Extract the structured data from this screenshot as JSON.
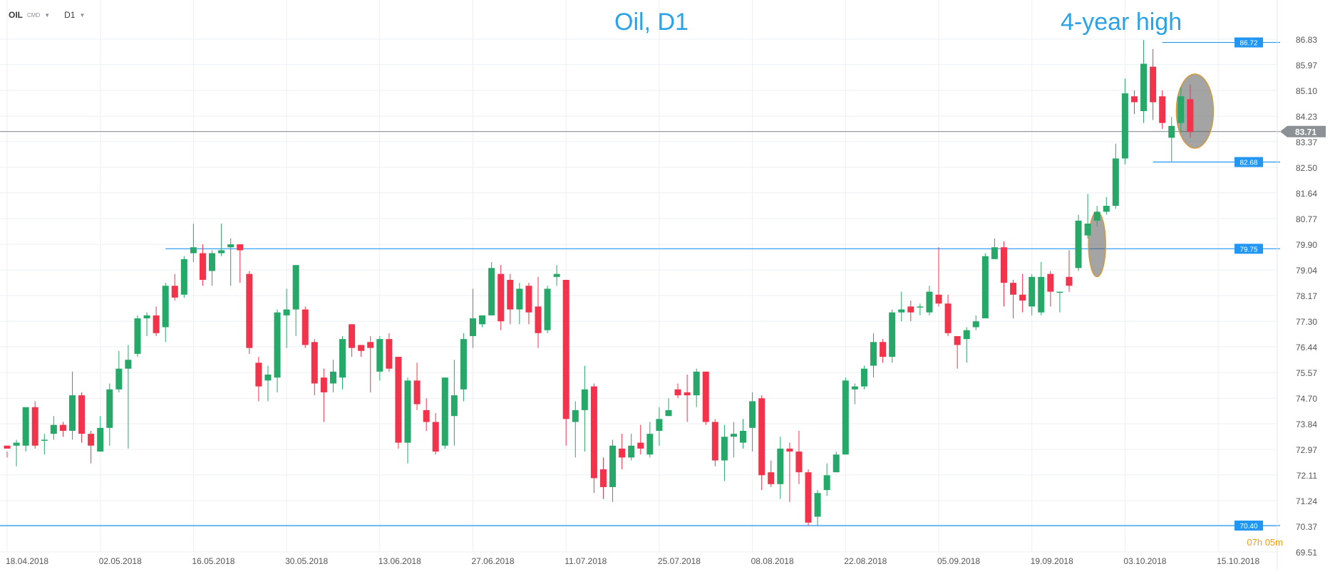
{
  "toolbar": {
    "symbol": "OIL",
    "market": "CMD",
    "timeframe": "D1"
  },
  "titles": {
    "main": "Oil, D1",
    "annotation": "4-year high"
  },
  "countdown": {
    "hours": "07",
    "h_unit": "h",
    "minutes": "05",
    "m_unit": "m"
  },
  "colors": {
    "up": "#26a869",
    "down": "#f2334b",
    "level_line": "#2196f3",
    "price_line": "#8c9196",
    "title": "#29a3e6",
    "countdown": "#f39c12"
  },
  "chart_data": {
    "type": "candlestick",
    "title": "Oil, D1",
    "annotation": "4-year high",
    "y_ticks": [
      "86.83",
      "85.97",
      "85.10",
      "84.23",
      "83.37",
      "82.50",
      "81.64",
      "80.77",
      "79.90",
      "79.04",
      "78.17",
      "77.30",
      "76.44",
      "75.57",
      "74.70",
      "73.84",
      "72.97",
      "72.11",
      "71.24",
      "70.37",
      "69.51"
    ],
    "ylim": [
      69.51,
      86.83
    ],
    "x_ticks": [
      "18.04.2018",
      "02.05.2018",
      "16.05.2018",
      "30.05.2018",
      "13.06.2018",
      "27.06.2018",
      "11.07.2018",
      "25.07.2018",
      "08.08.2018",
      "22.08.2018",
      "05.09.2018",
      "19.09.2018",
      "03.10.2018",
      "15.10.2018"
    ],
    "current_price": "83.71",
    "levels": [
      {
        "label": "86.72",
        "value": 86.72
      },
      {
        "label": "82.68",
        "value": 82.68
      },
      {
        "label": "79.75",
        "value": 79.75
      },
      {
        "label": "70.40",
        "value": 70.4
      }
    ],
    "candles": [
      [
        73.1,
        73.0,
        72.9,
        72.7
      ],
      [
        73.1,
        73.2,
        73.3,
        72.4
      ],
      [
        73.1,
        74.4,
        74.3,
        72.9
      ],
      [
        74.4,
        73.1,
        74.6,
        73.0
      ],
      [
        73.3,
        73.3,
        73.5,
        72.8
      ],
      [
        73.5,
        73.8,
        74.1,
        73.3
      ],
      [
        73.8,
        73.6,
        73.9,
        73.4
      ],
      [
        73.6,
        74.8,
        75.6,
        73.3
      ],
      [
        74.8,
        73.5,
        74.9,
        73.2
      ],
      [
        73.5,
        73.1,
        73.6,
        72.5
      ],
      [
        72.9,
        73.7,
        74.1,
        72.9
      ],
      [
        73.7,
        75.0,
        75.2,
        73.1
      ],
      [
        75.0,
        75.7,
        76.3,
        74.9
      ],
      [
        75.7,
        76.0,
        76.5,
        73.0
      ],
      [
        76.2,
        77.4,
        77.5,
        76.1
      ],
      [
        77.4,
        77.5,
        77.6,
        76.8
      ],
      [
        77.5,
        76.9,
        77.8,
        76.8
      ],
      [
        77.1,
        78.5,
        78.6,
        76.6
      ],
      [
        78.5,
        78.1,
        78.9,
        78.0
      ],
      [
        78.2,
        79.4,
        79.5,
        78.1
      ],
      [
        79.6,
        79.8,
        80.6,
        79.3
      ],
      [
        79.6,
        78.7,
        79.9,
        78.5
      ],
      [
        79.0,
        79.6,
        79.7,
        78.5
      ],
      [
        79.6,
        79.7,
        80.6,
        79.5
      ],
      [
        79.8,
        79.9,
        80.1,
        78.5
      ],
      [
        79.9,
        79.7,
        79.9,
        78.6
      ],
      [
        78.9,
        76.4,
        79.0,
        76.2
      ],
      [
        75.9,
        75.1,
        76.1,
        74.6
      ],
      [
        75.3,
        75.5,
        75.8,
        74.6
      ],
      [
        75.4,
        77.6,
        77.7,
        74.9
      ],
      [
        77.5,
        77.7,
        78.4,
        76.4
      ],
      [
        77.7,
        79.2,
        79.2,
        76.8
      ],
      [
        77.7,
        76.5,
        77.8,
        76.4
      ],
      [
        76.6,
        75.2,
        76.7,
        74.8
      ],
      [
        75.4,
        74.9,
        75.7,
        73.9
      ],
      [
        75.2,
        75.6,
        76.0,
        74.9
      ],
      [
        75.4,
        76.7,
        76.8,
        75.0
      ],
      [
        77.2,
        76.4,
        77.2,
        76.1
      ],
      [
        76.5,
        76.3,
        76.5,
        76.1
      ],
      [
        76.6,
        76.4,
        76.8,
        74.9
      ],
      [
        75.6,
        76.7,
        76.8,
        75.3
      ],
      [
        76.7,
        75.7,
        76.9,
        75.6
      ],
      [
        76.1,
        73.2,
        76.1,
        73.0
      ],
      [
        73.2,
        75.3,
        75.4,
        72.5
      ],
      [
        75.3,
        74.5,
        75.9,
        74.3
      ],
      [
        74.3,
        73.9,
        74.7,
        73.6
      ],
      [
        73.9,
        72.9,
        74.2,
        72.8
      ],
      [
        73.1,
        75.4,
        75.4,
        73.0
      ],
      [
        74.1,
        74.8,
        76.0,
        73.1
      ],
      [
        75.0,
        76.7,
        76.9,
        74.6
      ],
      [
        76.8,
        77.4,
        78.4,
        76.4
      ],
      [
        77.2,
        77.5,
        77.5,
        77.1
      ],
      [
        77.5,
        79.1,
        79.3,
        77.5
      ],
      [
        78.9,
        77.3,
        79.2,
        77.0
      ],
      [
        78.7,
        77.7,
        78.9,
        77.2
      ],
      [
        77.7,
        78.4,
        78.6,
        77.2
      ],
      [
        78.5,
        77.6,
        78.6,
        77.2
      ],
      [
        77.8,
        76.9,
        78.8,
        76.4
      ],
      [
        77.0,
        78.4,
        78.5,
        76.9
      ],
      [
        78.8,
        78.9,
        79.2,
        78.5
      ],
      [
        78.7,
        74.0,
        78.7,
        73.1
      ],
      [
        73.9,
        74.3,
        74.6,
        72.7
      ],
      [
        74.3,
        75.0,
        75.8,
        72.9
      ],
      [
        75.1,
        72.0,
        75.2,
        71.5
      ],
      [
        72.3,
        71.7,
        72.7,
        71.3
      ],
      [
        71.7,
        73.1,
        73.3,
        71.2
      ],
      [
        73.0,
        72.7,
        73.5,
        72.3
      ],
      [
        72.7,
        73.1,
        73.5,
        72.6
      ],
      [
        73.2,
        73.0,
        73.8,
        72.8
      ],
      [
        72.8,
        73.5,
        73.9,
        72.7
      ],
      [
        73.6,
        74.0,
        74.4,
        73.1
      ],
      [
        74.1,
        74.3,
        74.7,
        74.1
      ],
      [
        75.0,
        74.8,
        75.2,
        74.7
      ],
      [
        74.9,
        74.8,
        75.5,
        73.9
      ],
      [
        74.8,
        75.6,
        75.7,
        74.4
      ],
      [
        75.6,
        73.9,
        75.6,
        73.8
      ],
      [
        73.9,
        72.6,
        74.0,
        72.4
      ],
      [
        72.6,
        73.4,
        73.8,
        71.9
      ],
      [
        73.4,
        73.5,
        73.9,
        72.7
      ],
      [
        73.2,
        73.6,
        74.0,
        73.0
      ],
      [
        73.7,
        74.6,
        74.9,
        72.9
      ],
      [
        74.7,
        72.1,
        74.8,
        71.6
      ],
      [
        72.2,
        71.8,
        72.6,
        71.7
      ],
      [
        71.8,
        73.0,
        73.4,
        71.3
      ],
      [
        73.0,
        72.9,
        73.2,
        71.2
      ],
      [
        72.9,
        72.2,
        73.6,
        71.8
      ],
      [
        72.2,
        70.5,
        72.3,
        70.4
      ],
      [
        70.7,
        71.5,
        71.6,
        70.4
      ],
      [
        71.6,
        72.1,
        72.5,
        71.4
      ],
      [
        72.2,
        72.8,
        72.9,
        72.2
      ],
      [
        72.8,
        75.3,
        75.4,
        72.9
      ],
      [
        75.0,
        75.1,
        75.2,
        74.5
      ],
      [
        75.1,
        75.7,
        75.8,
        75.0
      ],
      [
        75.8,
        76.6,
        76.9,
        75.4
      ],
      [
        76.6,
        76.1,
        76.7,
        75.9
      ],
      [
        76.1,
        77.6,
        77.7,
        75.9
      ],
      [
        77.6,
        77.7,
        78.3,
        77.3
      ],
      [
        77.8,
        77.6,
        78.0,
        77.3
      ],
      [
        77.8,
        77.8,
        77.9,
        77.5
      ],
      [
        77.6,
        78.3,
        78.5,
        77.5
      ],
      [
        78.2,
        77.9,
        79.8,
        77.8
      ],
      [
        77.9,
        76.9,
        78.2,
        76.8
      ],
      [
        76.8,
        76.5,
        76.8,
        75.7
      ],
      [
        76.7,
        77.0,
        77.1,
        75.9
      ],
      [
        77.1,
        77.3,
        77.5,
        77.0
      ],
      [
        77.4,
        79.5,
        79.6,
        77.4
      ],
      [
        79.4,
        79.8,
        80.1,
        79.5
      ],
      [
        79.8,
        78.6,
        80.0,
        77.8
      ],
      [
        78.6,
        78.2,
        78.7,
        77.4
      ],
      [
        78.2,
        78.0,
        78.9,
        77.6
      ],
      [
        77.8,
        78.8,
        78.9,
        77.5
      ],
      [
        77.6,
        78.8,
        79.3,
        77.5
      ],
      [
        78.9,
        78.3,
        79.0,
        77.8
      ],
      [
        78.3,
        78.3,
        78.3,
        77.6
      ],
      [
        78.8,
        78.5,
        79.7,
        78.3
      ],
      [
        79.1,
        80.7,
        80.9,
        79.0
      ],
      [
        80.2,
        80.6,
        81.6,
        80.1
      ],
      [
        80.7,
        81.0,
        81.2,
        80.5
      ],
      [
        81.0,
        81.2,
        81.5,
        80.9
      ],
      [
        81.2,
        82.8,
        83.3,
        81.1
      ],
      [
        82.8,
        85.0,
        85.5,
        82.6
      ],
      [
        84.9,
        84.7,
        85.1,
        84.3
      ],
      [
        84.4,
        86.0,
        86.8,
        84.0
      ],
      [
        85.9,
        84.7,
        86.5,
        84.1
      ],
      [
        84.9,
        84.0,
        85.1,
        83.8
      ],
      [
        83.5,
        83.9,
        84.2,
        82.7
      ],
      [
        84.0,
        84.9,
        85.2,
        83.7
      ],
      [
        84.8,
        83.7,
        85.3,
        83.5
      ]
    ]
  }
}
